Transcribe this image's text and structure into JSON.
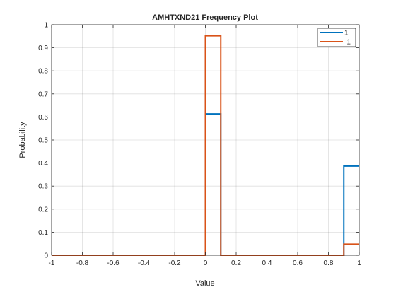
{
  "chart_data": {
    "type": "line",
    "title": "AMHTXND21 Frequency Plot",
    "xlabel": "Value",
    "ylabel": "Probability",
    "xlim": [
      -1,
      1
    ],
    "ylim": [
      0,
      1
    ],
    "grid": true,
    "legend_placement": "top-right",
    "x_ticks": [
      -1,
      -0.8,
      -0.6,
      -0.4,
      -0.2,
      0,
      0.2,
      0.4,
      0.6,
      0.8,
      1
    ],
    "x_tick_labels": [
      "-1",
      "-0.8",
      "-0.6",
      "-0.4",
      "-0.2",
      "0",
      "0.2",
      "0.4",
      "0.6",
      "0.8",
      "1"
    ],
    "y_ticks": [
      0,
      0.1,
      0.2,
      0.3,
      0.4,
      0.5,
      0.6,
      0.7,
      0.8,
      0.9,
      1
    ],
    "y_tick_labels": [
      "0",
      "0.1",
      "0.2",
      "0.3",
      "0.4",
      "0.5",
      "0.6",
      "0.7",
      "0.8",
      "0.9",
      "1"
    ],
    "bin_edges": [
      -1,
      -0.9,
      -0.8,
      -0.7,
      -0.6,
      -0.5,
      -0.4,
      -0.3,
      -0.2,
      -0.1,
      0,
      0.1,
      0.2,
      0.3,
      0.4,
      0.5,
      0.6,
      0.7,
      0.8,
      0.9,
      1
    ],
    "series": [
      {
        "name": "1",
        "color": "#0072BD",
        "values": [
          0,
          0,
          0,
          0,
          0,
          0,
          0,
          0,
          0,
          0,
          0.613,
          0,
          0,
          0,
          0,
          0,
          0,
          0,
          0,
          0.387
        ]
      },
      {
        "name": "-1",
        "color": "#D95319",
        "values": [
          0,
          0,
          0,
          0,
          0,
          0,
          0,
          0,
          0,
          0,
          0.952,
          0,
          0,
          0,
          0,
          0,
          0,
          0,
          0,
          0.048
        ]
      }
    ]
  }
}
